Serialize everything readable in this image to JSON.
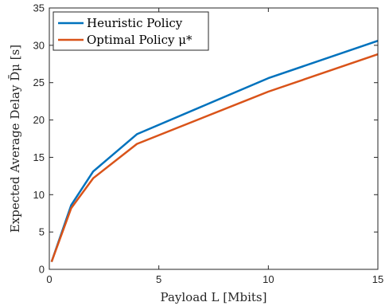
{
  "chart_data": {
    "type": "line",
    "x": [
      0.1,
      1,
      2,
      4,
      10,
      15
    ],
    "series": [
      {
        "name": "Heuristic Policy",
        "values": [
          1.0,
          8.6,
          13.1,
          18.1,
          25.6,
          30.6
        ],
        "color": "#0072BD"
      },
      {
        "name": "Optimal Policy μ*",
        "values": [
          1.0,
          8.2,
          12.2,
          16.8,
          23.8,
          28.8
        ],
        "color": "#D95319"
      }
    ],
    "xlabel": "Payload L [Mbits]",
    "ylabel": "Expected Average Delay D̄μ [s]",
    "xlim": [
      0,
      15
    ],
    "ylim": [
      0,
      35
    ],
    "xticks": [
      0,
      5,
      10,
      15
    ],
    "yticks": [
      0,
      5,
      10,
      15,
      20,
      25,
      30,
      35
    ],
    "grid": false,
    "legend_position": "top-left"
  }
}
